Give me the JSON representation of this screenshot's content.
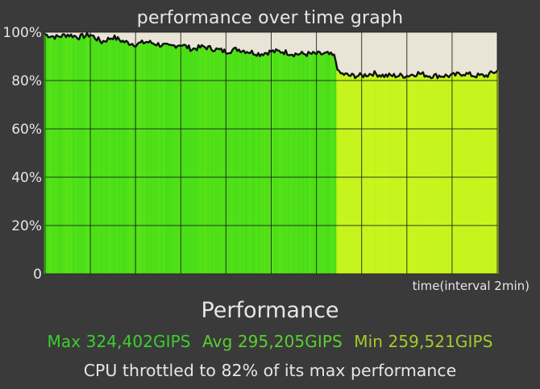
{
  "graph_title": "performance over time graph",
  "summary": {
    "title": "Performance",
    "max": "Max 324,402GIPS",
    "avg": "Avg 295,205GIPS",
    "min": "Min 259,521GIPS",
    "throttle_note": "CPU throttled to 82% of its max performance"
  },
  "colors": {
    "background": "#3a3a3a",
    "plot_bg": "#e8e4d6",
    "grid": "#1a1a1a",
    "text": "#e6e6e6",
    "green_high": "#4fe018",
    "yellow_green_low": "#c6f51e",
    "max_text": "#3bcf2e",
    "avg_text": "#58d02f",
    "min_text": "#a6c92b"
  },
  "chart_data": {
    "type": "area",
    "title": "performance over time graph",
    "xlabel": "time(interval 2min)",
    "ylabel": "",
    "ylim": [
      0,
      100
    ],
    "y_ticks": [
      "0",
      "20%",
      "40%",
      "60%",
      "80%",
      "100%"
    ],
    "x_grid_intervals": 10,
    "x_max": 20,
    "grid": true,
    "series": [
      {
        "x": [
          0,
          0.5,
          1,
          1.5,
          2,
          2.5,
          3,
          3.5,
          4,
          4.5,
          5,
          5.5,
          6,
          6.5,
          7,
          7.5,
          8,
          8.5,
          9,
          9.5,
          10,
          10.5,
          11,
          11.5,
          12,
          12.5,
          12.8,
          13,
          13.5,
          14,
          14.5,
          15,
          15.5,
          16,
          16.5,
          17,
          17.5,
          18,
          18.5,
          19,
          19.5,
          20
        ],
        "values": [
          99,
          98,
          99,
          98,
          99,
          96,
          98,
          96,
          95,
          96,
          95,
          94,
          95,
          93,
          94,
          93,
          92,
          93,
          92,
          91,
          92,
          92,
          91,
          91,
          91,
          91,
          90,
          83,
          82,
          82,
          83,
          82,
          82,
          82,
          83,
          82,
          82,
          82,
          83,
          82,
          82,
          84
        ]
      }
    ]
  }
}
